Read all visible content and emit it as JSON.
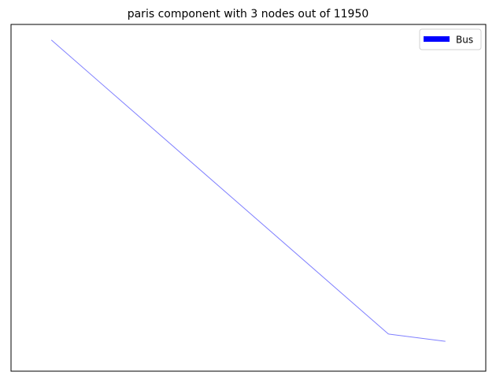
{
  "chart_data": {
    "type": "line",
    "title": "paris component with 3 nodes out of 11950",
    "xlabel": "",
    "ylabel": "",
    "axes_ticks": false,
    "grid": false,
    "legend": {
      "placement": "top-right",
      "entries": [
        {
          "label": "Bus",
          "color": "#0000ff"
        }
      ]
    },
    "xlim": [
      0,
      100
    ],
    "ylim": [
      0,
      100
    ],
    "series": [
      {
        "name": "Bus",
        "color": "#0000ff",
        "opacity": 0.5,
        "points": [
          {
            "x": 8.5,
            "y": 95.5
          },
          {
            "x": 79.5,
            "y": 10.7
          },
          {
            "x": 91.5,
            "y": 8.6
          }
        ]
      }
    ]
  }
}
